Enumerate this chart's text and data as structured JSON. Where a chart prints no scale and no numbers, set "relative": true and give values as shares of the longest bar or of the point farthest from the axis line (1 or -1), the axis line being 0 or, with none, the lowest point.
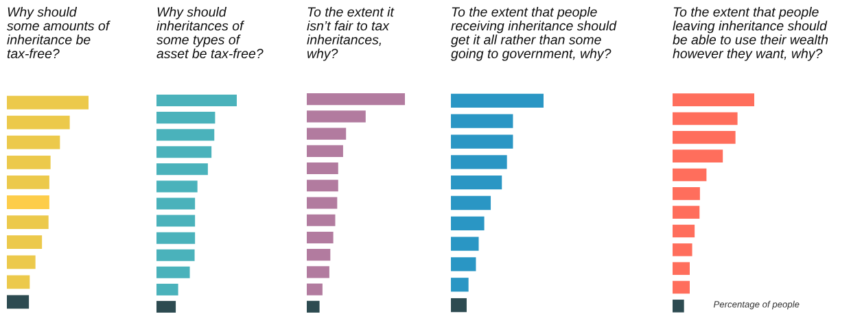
{
  "chart_data": [
    {
      "type": "bar",
      "orientation": "horizontal",
      "relative": true,
      "title": "Why should\nsome amounts of\ninheritance be\ntax-free?",
      "categories": [
        null,
        null,
        null,
        null,
        null,
        null,
        null,
        null,
        null,
        null,
        null
      ],
      "values": [
        1,
        0.77,
        0.65,
        0.535,
        0.52,
        0.52,
        0.51,
        0.43,
        0.35,
        0.28,
        0.27
      ],
      "colors": [
        "#ecc94b",
        "#ecc94b",
        "#ecc94b",
        "#ecc94b",
        "#ecc94b",
        "#fdcd4a",
        "#ecc94b",
        "#ecc94b",
        "#ecc94b",
        "#ecc94b",
        "#2d4b51"
      ]
    },
    {
      "type": "bar",
      "orientation": "horizontal",
      "relative": true,
      "title": "Why should\ninheritances of\nsome types of\nasset be tax-free?",
      "categories": [
        null,
        null,
        null,
        null,
        null,
        null,
        null,
        null,
        null,
        null,
        null,
        null,
        null
      ],
      "values": [
        1,
        0.73,
        0.72,
        0.685,
        0.64,
        0.51,
        0.48,
        0.48,
        0.48,
        0.475,
        0.415,
        0.27,
        0.24
      ],
      "colors": [
        "#4ab2bb",
        "#4ab2bb",
        "#4ab2bb",
        "#4ab2bb",
        "#4ab2bb",
        "#4ab2bb",
        "#4ab2bb",
        "#4ab2bb",
        "#4ab2bb",
        "#4ab2bb",
        "#4ab2bb",
        "#4ab2bb",
        "#2d4b51"
      ]
    },
    {
      "type": "bar",
      "orientation": "horizontal",
      "relative": true,
      "title": "To the extent it\nisn’t fair to tax\ninheritances,\nwhy?",
      "categories": [
        null,
        null,
        null,
        null,
        null,
        null,
        null,
        null,
        null,
        null,
        null,
        null,
        null
      ],
      "values": [
        1,
        0.6,
        0.4,
        0.37,
        0.32,
        0.32,
        0.31,
        0.29,
        0.27,
        0.24,
        0.23,
        0.16,
        0.13
      ],
      "colors": [
        "#b27b9f",
        "#b27b9f",
        "#b27b9f",
        "#b27b9f",
        "#b27b9f",
        "#b27b9f",
        "#b27b9f",
        "#b27b9f",
        "#b27b9f",
        "#b27b9f",
        "#b27b9f",
        "#b27b9f",
        "#2d4b51"
      ]
    },
    {
      "type": "bar",
      "orientation": "horizontal",
      "relative": true,
      "title": "To the extent that people\nreceiving inheritance should\nget it all rather than some\ngoing to government, why?",
      "categories": [
        null,
        null,
        null,
        null,
        null,
        null,
        null,
        null,
        null,
        null,
        null
      ],
      "values": [
        1,
        0.67,
        0.67,
        0.605,
        0.55,
        0.43,
        0.36,
        0.3,
        0.27,
        0.19,
        0.17
      ],
      "colors": [
        "#2a96c4",
        "#2a96c4",
        "#2a96c4",
        "#2a96c4",
        "#2a96c4",
        "#2a96c4",
        "#2a96c4",
        "#2a96c4",
        "#2a96c4",
        "#2a96c4",
        "#2d4b51"
      ]
    },
    {
      "type": "bar",
      "orientation": "horizontal",
      "relative": true,
      "title": "To the extent that people\nleaving inheritance should\nbe able to use their wealth\nhowever they want, why?",
      "categories": [
        null,
        null,
        null,
        null,
        null,
        null,
        null,
        null,
        null,
        null,
        null,
        null
      ],
      "values": [
        1,
        0.795,
        0.77,
        0.615,
        0.415,
        0.335,
        0.33,
        0.27,
        0.24,
        0.21,
        0.21,
        0.14
      ],
      "colors": [
        "#ff6e5c",
        "#ff6e5c",
        "#ff6e5c",
        "#ff6e5c",
        "#ff6e5c",
        "#ff6e5c",
        "#ff6e5c",
        "#ff6e5c",
        "#ff6e5c",
        "#ff6e5c",
        "#ff6e5c",
        "#2d4b51"
      ],
      "annotations": [
        "Percentage of people"
      ]
    }
  ]
}
